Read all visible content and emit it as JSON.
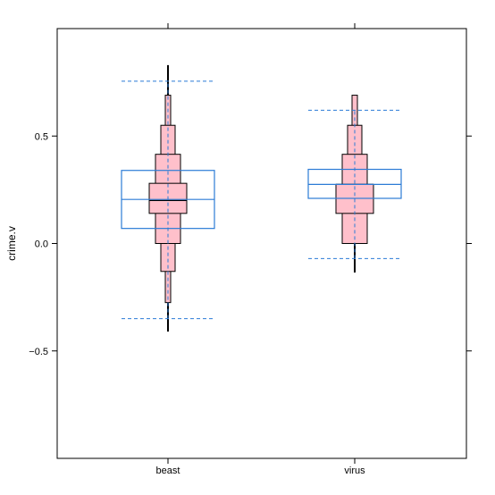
{
  "chart_data": {
    "type": "letter-value-boxplot",
    "title": "",
    "xlabel": "",
    "ylabel": "crime.v",
    "ylim": [
      -1.0,
      1.0
    ],
    "y_ticks": [
      -0.5,
      0.0,
      0.5
    ],
    "y_tick_labels": [
      "−0.5",
      "0.0",
      "0.5"
    ],
    "grid": false,
    "legend": "none",
    "categories": [
      "beast",
      "virus"
    ],
    "colors": {
      "box_fill": "#ffc0cb",
      "box_stroke": "#000000",
      "overlay": "#2b7bd6",
      "axis": "#000000"
    },
    "groups": [
      {
        "name": "beast",
        "median": 0.2,
        "letter_values": [
          [
            0.14,
            0.28
          ],
          [
            0.0,
            0.415
          ],
          [
            -0.13,
            0.55
          ],
          [
            -0.275,
            0.69
          ]
        ],
        "whisker": [
          -0.41,
          0.83
        ],
        "mean": 0.205,
        "sd_box": [
          0.07,
          0.34
        ],
        "range_lines": [
          -0.35,
          0.755
        ]
      },
      {
        "name": "virus",
        "median": 0.275,
        "letter_values": [
          [
            0.14,
            0.275
          ],
          [
            0.0,
            0.415
          ],
          [
            0.0,
            0.55
          ],
          [
            0.0,
            0.69
          ]
        ],
        "whisker": [
          -0.135,
          0.69
        ],
        "mean": 0.275,
        "sd_box": [
          0.21,
          0.345
        ],
        "range_lines": [
          -0.07,
          0.62
        ]
      }
    ]
  }
}
